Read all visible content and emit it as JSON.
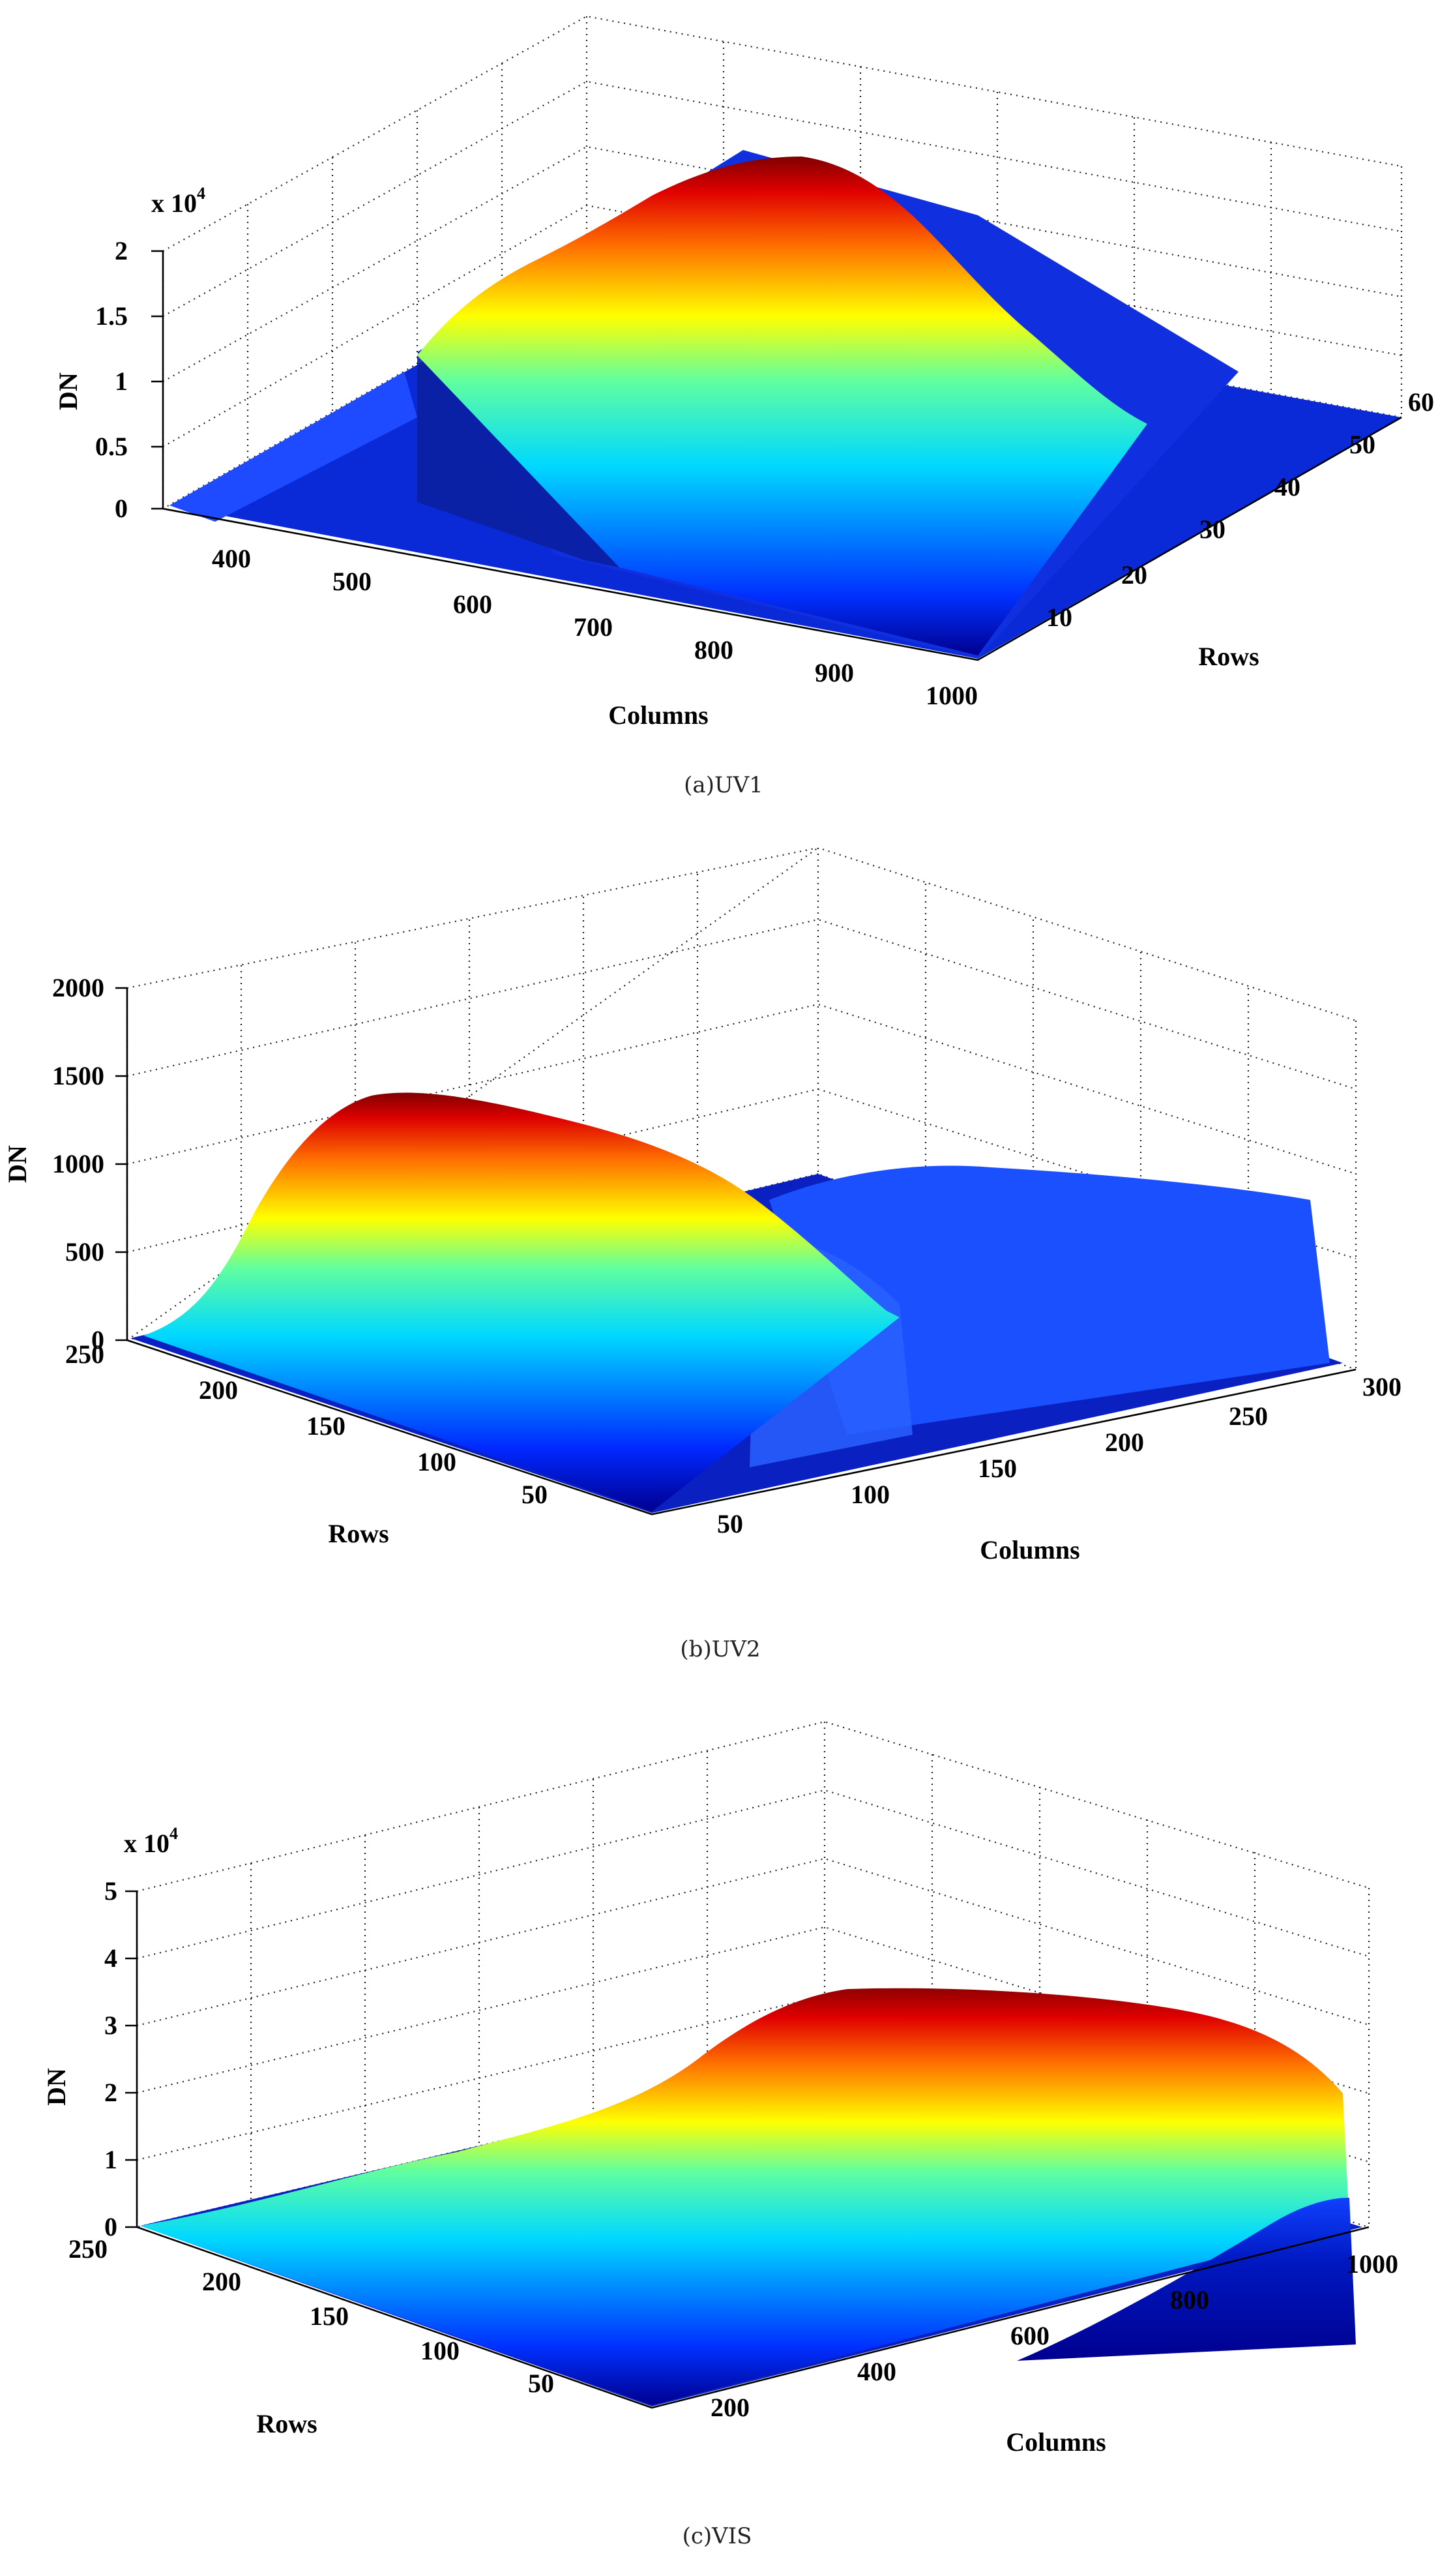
{
  "charts": [
    {
      "panel": "a",
      "type": "surface",
      "caption": "(a)UV1",
      "zlabel": "DN",
      "xlabel": "Columns",
      "ylabel": "Rows",
      "z_multiplier_label": "x 10",
      "z_multiplier_exp": "4",
      "z_ticks": [
        "0",
        "0.5",
        "1",
        "1.5",
        "2"
      ],
      "x_ticks": [
        "400",
        "500",
        "600",
        "700",
        "800",
        "900",
        "1000"
      ],
      "y_ticks": [
        "10",
        "20",
        "30",
        "40",
        "50",
        "60"
      ]
    },
    {
      "panel": "b",
      "type": "surface",
      "caption": "(b)UV2",
      "zlabel": "DN",
      "xlabel": "Columns",
      "ylabel": "Rows",
      "z_ticks": [
        "0",
        "500",
        "1000",
        "1500",
        "2000"
      ],
      "x_ticks": [
        "50",
        "100",
        "150",
        "200",
        "250",
        "300"
      ],
      "y_ticks": [
        "250",
        "200",
        "150",
        "100",
        "50"
      ]
    },
    {
      "panel": "c",
      "type": "surface",
      "caption": "(c)VIS",
      "zlabel": "DN",
      "xlabel": "Columns",
      "ylabel": "Rows",
      "z_multiplier_label": "x 10",
      "z_multiplier_exp": "4",
      "z_ticks": [
        "0",
        "1",
        "2",
        "3",
        "4",
        "5"
      ],
      "x_ticks": [
        "200",
        "400",
        "600",
        "800",
        "1000"
      ],
      "y_ticks": [
        "250",
        "200",
        "150",
        "100",
        "50"
      ]
    }
  ],
  "chart_data": [
    {
      "type": "surface",
      "title": "",
      "caption": "(a)UV1",
      "xlabel": "Columns",
      "ylabel": "Rows",
      "zlabel": "DN",
      "xlim": [
        340,
        1040
      ],
      "ylim": [
        0,
        65
      ],
      "zlim": [
        0,
        20000
      ],
      "z_scale_note": "x 10^4",
      "colormap": "jet",
      "grid": true,
      "peak_dn": 19000,
      "profile_along_columns": {
        "x": [
          340,
          450,
          530,
          560,
          600,
          650,
          700,
          760,
          820,
          900,
          1000,
          1040
        ],
        "z": [
          600,
          1200,
          1500,
          9000,
          14500,
          17500,
          18500,
          16000,
          9000,
          2000,
          400,
          200
        ]
      }
    },
    {
      "type": "surface",
      "title": "",
      "caption": "(b)UV2",
      "xlabel": "Columns",
      "ylabel": "Rows",
      "zlabel": "DN",
      "xlim": [
        0,
        300
      ],
      "ylim": [
        0,
        260
      ],
      "zlim": [
        0,
        2000
      ],
      "colormap": "jet",
      "grid": true,
      "peak_dn": 1450,
      "profile_along_columns": {
        "x": [
          0,
          20,
          50,
          80,
          110,
          140,
          170,
          200,
          230,
          260,
          290,
          300
        ],
        "z": [
          200,
          700,
          1250,
          1450,
          1350,
          900,
          550,
          500,
          520,
          550,
          600,
          250
        ]
      }
    },
    {
      "type": "surface",
      "title": "",
      "caption": "(c)VIS",
      "xlabel": "Columns",
      "ylabel": "Rows",
      "zlabel": "DN",
      "xlim": [
        0,
        1000
      ],
      "ylim": [
        0,
        260
      ],
      "zlim": [
        0,
        50000
      ],
      "z_scale_note": "x 10^4",
      "colormap": "jet",
      "grid": true,
      "peak_dn": 42000,
      "profile_along_columns": {
        "x": [
          0,
          100,
          200,
          300,
          400,
          500,
          600,
          700,
          800,
          900,
          950,
          1000
        ],
        "z": [
          500,
          3000,
          7000,
          12000,
          20000,
          30000,
          37000,
          41000,
          42000,
          39000,
          30000,
          5000
        ]
      }
    }
  ]
}
